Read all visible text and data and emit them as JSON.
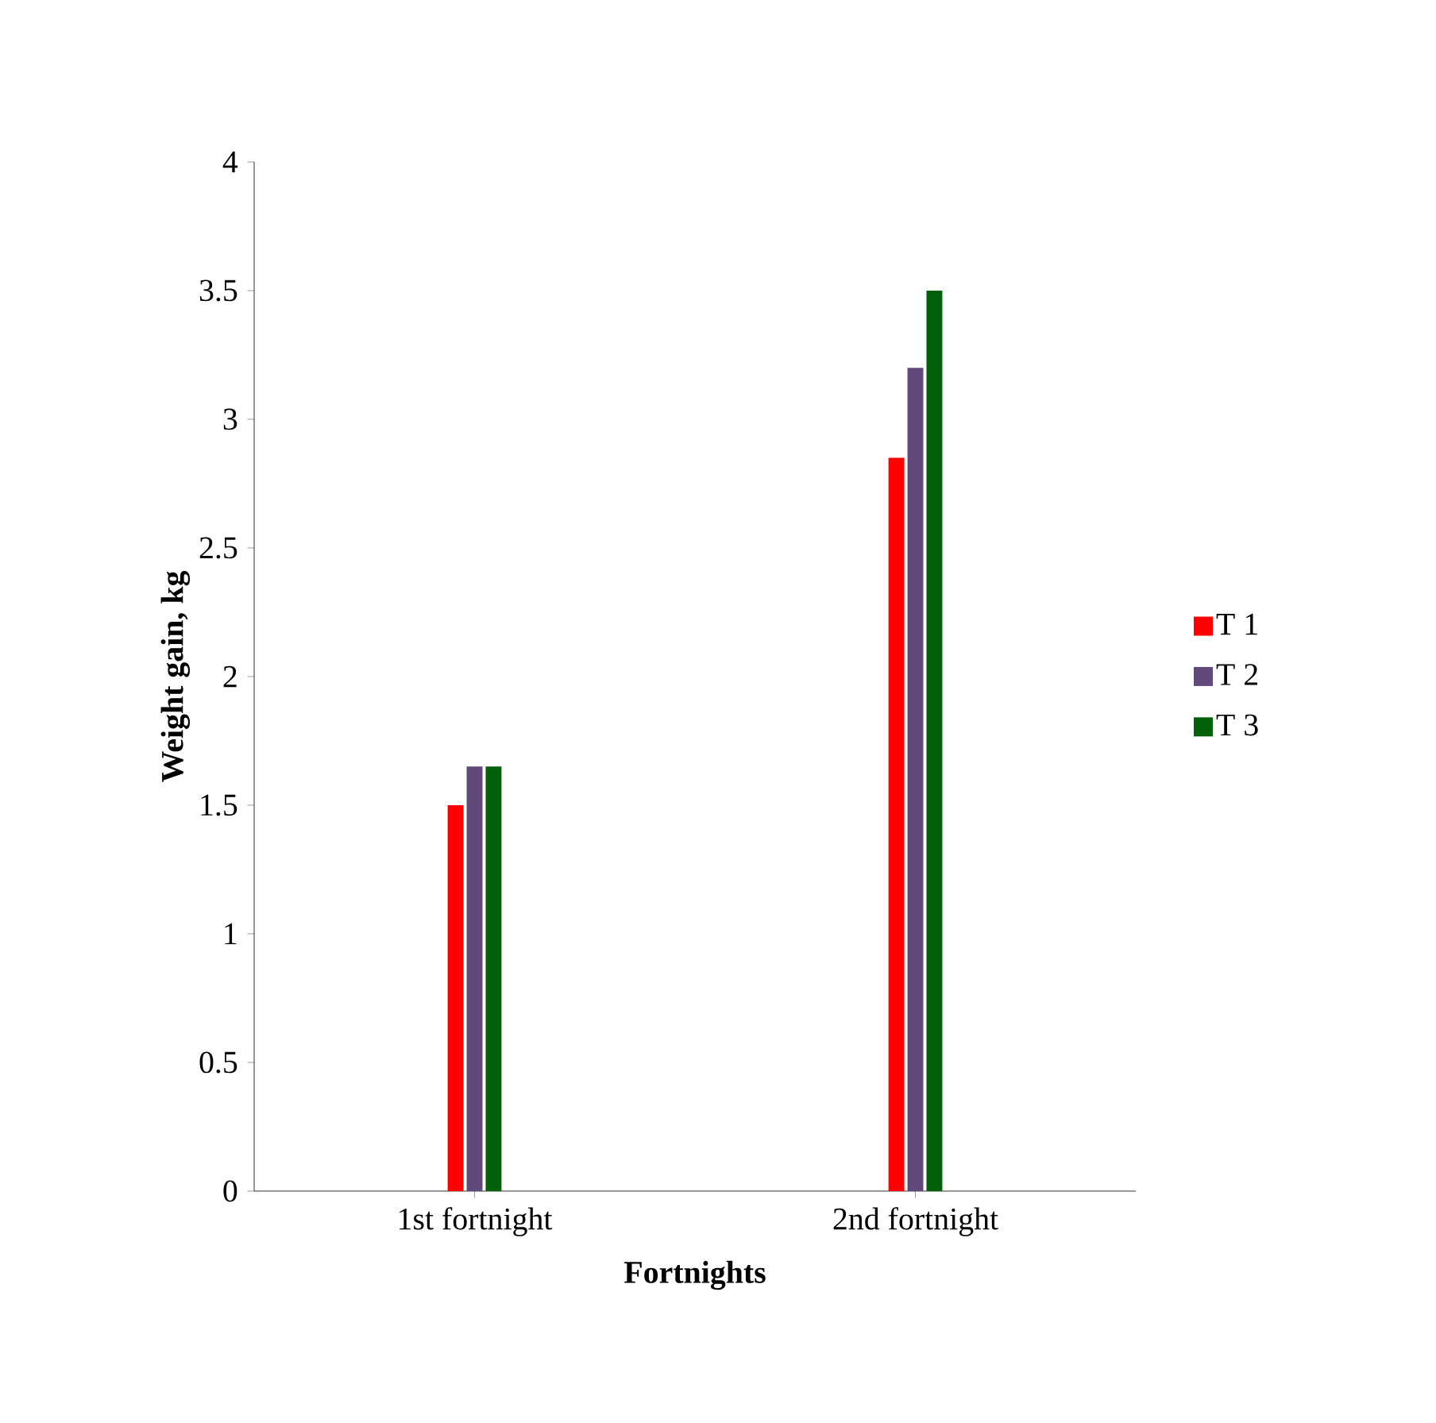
{
  "chart_data": {
    "type": "bar",
    "xlabel": "Fortnights",
    "ylabel": "Weight gain, kg",
    "categories": [
      "1st  fortnight",
      "2nd fortnight"
    ],
    "series": [
      {
        "name": "T 1",
        "color": "#ff0000",
        "values": [
          1.5,
          2.85
        ]
      },
      {
        "name": "T 2",
        "color": "#604a7b",
        "values": [
          1.65,
          3.2
        ]
      },
      {
        "name": "T 3",
        "color": "#00610a",
        "values": [
          1.65,
          3.5
        ]
      }
    ],
    "ylim": [
      0,
      4
    ],
    "yticks": [
      0,
      0.5,
      1,
      1.5,
      2,
      2.5,
      3,
      3.5,
      4
    ],
    "legend": "right"
  }
}
